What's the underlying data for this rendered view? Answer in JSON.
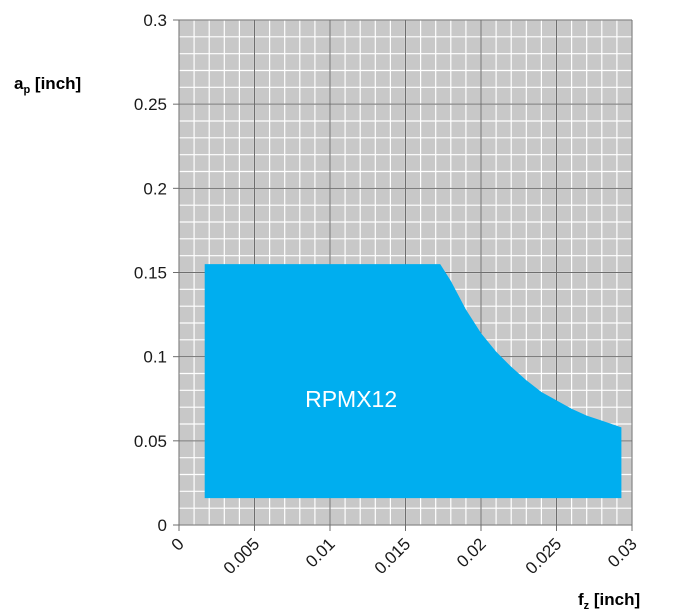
{
  "chart_data": {
    "type": "area",
    "x_axis": {
      "label_main": "f",
      "label_sub": "z",
      "label_unit": " [inch]",
      "range": [
        0,
        0.03
      ],
      "major_ticks": [
        0,
        0.005,
        0.01,
        0.015,
        0.02,
        0.025,
        0.03
      ],
      "tick_labels": [
        "0",
        "0.005",
        "0.01",
        "0.015",
        "0.02",
        "0.025",
        "0.03"
      ],
      "minor_step": 0.001
    },
    "y_axis": {
      "label_main": "a",
      "label_sub": "p",
      "label_unit": " [inch]",
      "range": [
        0,
        0.3
      ],
      "major_ticks": [
        0,
        0.05,
        0.1,
        0.15,
        0.2,
        0.25,
        0.3
      ],
      "tick_labels": [
        "0",
        "0.05",
        "0.1",
        "0.15",
        "0.2",
        "0.25",
        "0.3"
      ],
      "minor_step": 0.01
    },
    "grid": true,
    "background_color": "#c8c8c8",
    "grid_color": "#ffffff",
    "major_grid_color": "#6e6e6e",
    "regions": [
      {
        "name": "RPMX12",
        "color": "#00aeef",
        "boundary": [
          {
            "x": 0.0017,
            "y": 0.016
          },
          {
            "x": 0.0017,
            "y": 0.155
          },
          {
            "x": 0.0173,
            "y": 0.155
          },
          {
            "x": 0.018,
            "y": 0.145
          },
          {
            "x": 0.019,
            "y": 0.128
          },
          {
            "x": 0.02,
            "y": 0.114
          },
          {
            "x": 0.021,
            "y": 0.103
          },
          {
            "x": 0.022,
            "y": 0.094
          },
          {
            "x": 0.023,
            "y": 0.086
          },
          {
            "x": 0.024,
            "y": 0.079
          },
          {
            "x": 0.025,
            "y": 0.074
          },
          {
            "x": 0.026,
            "y": 0.069
          },
          {
            "x": 0.027,
            "y": 0.065
          },
          {
            "x": 0.028,
            "y": 0.062
          },
          {
            "x": 0.0293,
            "y": 0.058
          },
          {
            "x": 0.0293,
            "y": 0.016
          }
        ],
        "label_position": {
          "x": 0.0114,
          "y": 0.07
        }
      }
    ]
  }
}
